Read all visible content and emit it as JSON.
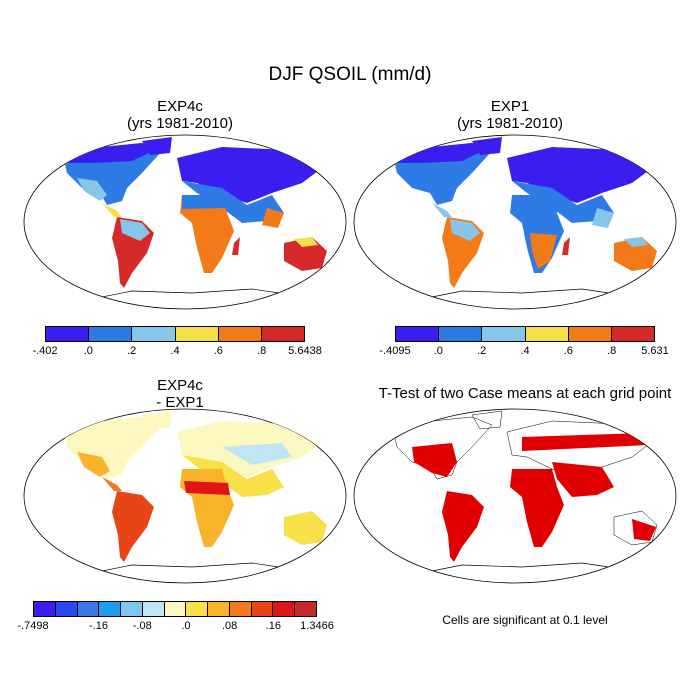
{
  "title": "DJF QSOIL (mm/d)",
  "panels": [
    {
      "title1": "EXP4c",
      "title2": "(yrs 1981-2010)"
    },
    {
      "title1": "EXP1",
      "title2": "(yrs 1981-2010)"
    },
    {
      "title1": "EXP4c",
      "title2": "- EXP1"
    },
    {
      "title1": "T-Test of two Case means at each grid point",
      "title2": ""
    }
  ],
  "colorbars": [
    {
      "labels": [
        "-.402",
        ".0",
        ".2",
        ".4",
        ".6",
        ".8",
        "5.6438"
      ],
      "colors": [
        "#3a1ef0",
        "#2f7be6",
        "#86c6ea",
        "#f5e04a",
        "#f27a18",
        "#d62a2a"
      ]
    },
    {
      "labels": [
        "-.4095",
        ".0",
        ".2",
        ".4",
        ".6",
        ".8",
        "5.631"
      ],
      "colors": [
        "#3a1ef0",
        "#2f7be6",
        "#86c6ea",
        "#f5e04a",
        "#f27a18",
        "#d62a2a"
      ]
    },
    {
      "labels": [
        "-.7498",
        "-.16",
        "-.08",
        ".0",
        ".08",
        ".16",
        "1.3466"
      ],
      "colors": [
        "#3a1ef0",
        "#2a48f0",
        "#3a78e8",
        "#1aa0f0",
        "#7cc8ee",
        "#bfe6f4",
        "#fdf8c0",
        "#f8e04a",
        "#f8b32a",
        "#f27a18",
        "#e84416",
        "#e01616",
        "#c42828"
      ]
    }
  ],
  "note": "Cells are significant at 0.1 level"
}
